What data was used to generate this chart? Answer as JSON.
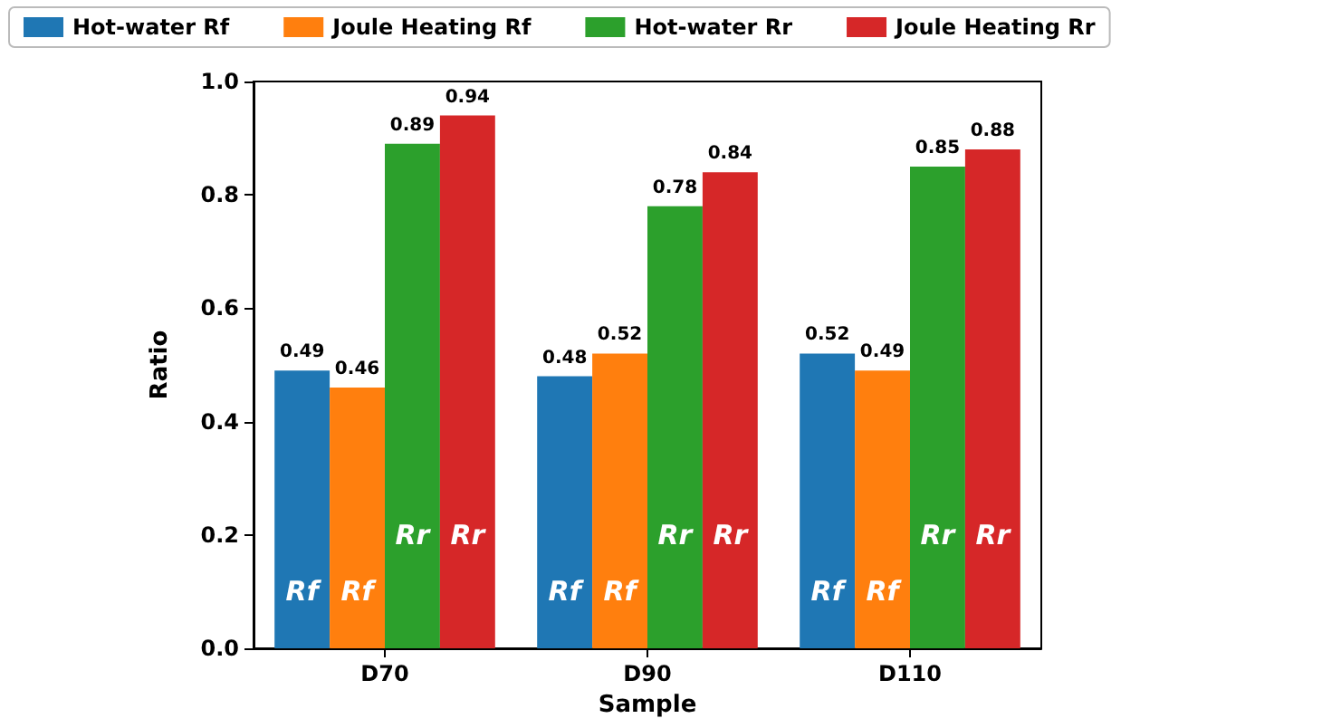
{
  "chart_data": {
    "type": "bar",
    "xlabel": "Sample",
    "ylabel": "Ratio",
    "categories": [
      "D70",
      "D90",
      "D110"
    ],
    "series": [
      {
        "name": "Hot-water Rf",
        "color": "#1f77b4",
        "values": [
          0.49,
          0.48,
          0.52
        ]
      },
      {
        "name": "Joule Heating Rf",
        "color": "#ff7f0e",
        "values": [
          0.46,
          0.52,
          0.49
        ]
      },
      {
        "name": "Hot-water Rr",
        "color": "#2ca02c",
        "values": [
          0.89,
          0.78,
          0.85
        ]
      },
      {
        "name": "Joule Heating Rr",
        "color": "#d62728",
        "values": [
          0.94,
          0.84,
          0.88
        ]
      }
    ],
    "ylim": [
      0,
      1
    ],
    "yticks": [
      {
        "value": 0,
        "label": "0.0"
      },
      0.2,
      0.4,
      0.6,
      0.8,
      {
        "value": 1,
        "label": "1.0"
      }
    ],
    "grid": false,
    "legend": "top",
    "data_labels": true,
    "annotations": [
      {
        "text": "Rf",
        "x": "D70",
        "y": 0.1
      },
      {
        "text": "Rf",
        "x": "D70",
        "y": 0.1
      },
      {
        "text": "Rr",
        "x": "D70",
        "y": 0.2
      },
      {
        "text": "Rr",
        "x": "D70",
        "y": 0.2
      },
      {
        "text": "Rf",
        "x": "D90",
        "y": 0.1
      },
      {
        "text": "Rf",
        "x": "D90",
        "y": 0.1
      },
      {
        "text": "Rr",
        "x": "D90",
        "y": 0.2
      },
      {
        "text": "Rr",
        "x": "D90",
        "y": 0.2
      },
      {
        "text": "Rf",
        "x": "D110",
        "y": 0.1
      },
      {
        "text": "Rf",
        "x": "D110",
        "y": 0.1
      },
      {
        "text": "Rr",
        "x": "D110",
        "y": 0.2
      },
      {
        "text": "Rr",
        "x": "D110",
        "y": 0.2
      }
    ]
  }
}
